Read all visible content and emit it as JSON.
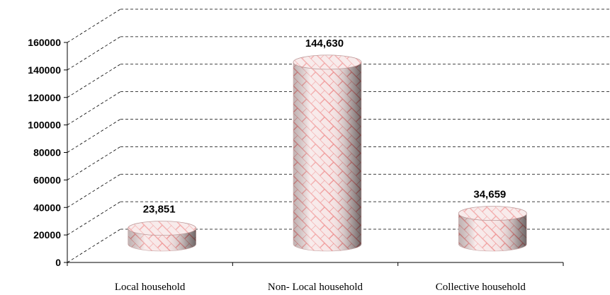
{
  "chart_data": {
    "type": "bar",
    "style": "3d-cylinder",
    "title": "",
    "xlabel": "",
    "ylabel": "",
    "categories": [
      "Local household",
      "Non- Local household",
      "Collective household"
    ],
    "values": [
      23851,
      144630,
      34659
    ],
    "data_labels": [
      "23,851",
      "144,630",
      "34,659"
    ],
    "ylim": [
      0,
      160000
    ],
    "y_ticks": [
      0,
      20000,
      40000,
      60000,
      80000,
      100000,
      120000,
      140000,
      160000
    ],
    "y_tick_labels": [
      "0",
      "20000",
      "40000",
      "60000",
      "80000",
      "100000",
      "120000",
      "140000",
      "160000"
    ],
    "grid": true,
    "legend": "none",
    "colors": {
      "bar_fill": "#f3dcdc",
      "bar_pattern": "#f08080",
      "grid": "#000000"
    }
  }
}
